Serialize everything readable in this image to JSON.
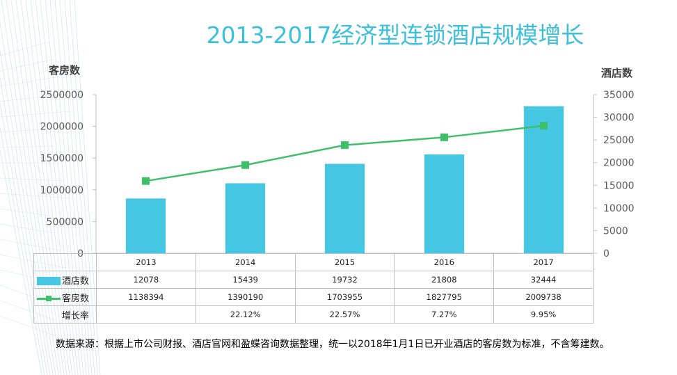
{
  "title": "2013-2017经济型连锁酒店规模增长",
  "left_axis_title": "客房数",
  "right_axis_title": "酒店数",
  "chart_data": {
    "type": "bar+line",
    "categories": [
      "2013",
      "2014",
      "2015",
      "2016",
      "2017"
    ],
    "series": [
      {
        "name": "酒店数",
        "kind": "bar",
        "axis": "right",
        "values": [
          12078,
          15439,
          19732,
          21808,
          32444
        ]
      },
      {
        "name": "客房数",
        "kind": "line",
        "axis": "left",
        "values": [
          1138394,
          1390190,
          1703955,
          1827795,
          2009738
        ]
      }
    ],
    "growth_row_label": "增长率",
    "growth_rate": [
      "",
      "22.12%",
      "22.57%",
      "7.27%",
      "9.95%"
    ],
    "left_axis": {
      "min": 0,
      "max": 2500000,
      "ticks": [
        "0",
        "500000",
        "1000000",
        "1500000",
        "2000000",
        "2500000"
      ]
    },
    "right_axis": {
      "min": 0,
      "max": 35000,
      "ticks": [
        "0",
        "5000",
        "10000",
        "15000",
        "20000",
        "25000",
        "30000",
        "35000"
      ]
    },
    "grid": false,
    "legend": "data-table"
  },
  "colors": {
    "bar": "#45c6e3",
    "line": "#3fbf6a",
    "title": "#3cbfd8"
  },
  "source_note": "数据来源：根据上市公司财报、酒店官网和盈蝶咨询数据整理，统一以2018年1月1日已开业酒店的客房数为标准，不含筹建数。"
}
